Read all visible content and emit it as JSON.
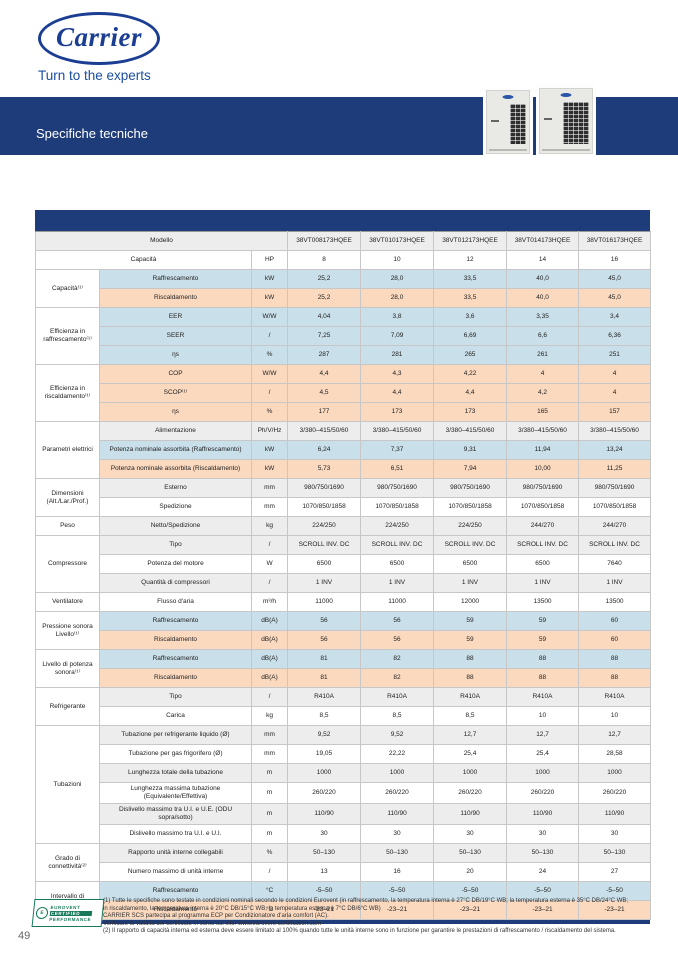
{
  "header": {
    "logo_text": "Carrier",
    "tagline": "Turn to the experts",
    "banner_title": "Specifiche tecniche"
  },
  "colors": {
    "navy": "#1e3c7a",
    "carrier_blue": "#1b3e93",
    "blue_tint": "#c9dfe9",
    "orange_tint": "#fbd9bf",
    "gray_tint": "#ededed",
    "eurovent_green": "#17795a"
  },
  "table": {
    "sections": [
      {
        "rows": [
          {
            "label": "Modello",
            "span": 3,
            "tint": "gray",
            "values": [
              "38VT008173HQEE",
              "38VT010173HQEE",
              "38VT012173HQEE",
              "38VT014173HQEE",
              "38VT016173HQEE"
            ]
          }
        ]
      },
      {
        "rows": [
          {
            "label": "Capacità",
            "span": 2,
            "unit": "HP",
            "tint": "white",
            "values": [
              "8",
              "10",
              "12",
              "14",
              "16"
            ]
          }
        ]
      },
      {
        "group": "Capacità⁽¹⁾",
        "group_tint": "white",
        "rows": [
          {
            "label": "Raffrescamento",
            "unit": "kW",
            "tint": "blue",
            "values": [
              "25,2",
              "28,0",
              "33,5",
              "40,0",
              "45,0"
            ]
          },
          {
            "label": "Riscaldamento",
            "unit": "kW",
            "tint": "orange",
            "values": [
              "25,2",
              "28,0",
              "33,5",
              "40,0",
              "45,0"
            ]
          }
        ]
      },
      {
        "group": "Efficienza in raffrescamento⁽¹⁾",
        "group_tint": "blue",
        "rows": [
          {
            "label": "EER",
            "unit": "W/W",
            "tint": "blue",
            "values": [
              "4,04",
              "3,8",
              "3,6",
              "3,35",
              "3,4"
            ]
          },
          {
            "label": "SEER",
            "unit": "/",
            "tint": "blue",
            "values": [
              "7,25",
              "7,09",
              "6,69",
              "6,6",
              "6,36"
            ]
          },
          {
            "label": "ηs",
            "unit": "%",
            "tint": "blue",
            "values": [
              "287",
              "281",
              "265",
              "261",
              "251"
            ]
          }
        ]
      },
      {
        "group": "Efficienza in riscaldamento⁽¹⁾",
        "group_tint": "orange",
        "rows": [
          {
            "label": "COP",
            "unit": "W/W",
            "tint": "orange",
            "values": [
              "4,4",
              "4,3",
              "4,22",
              "4",
              "4"
            ]
          },
          {
            "label": "SCOP⁽¹⁾",
            "unit": "/",
            "tint": "orange",
            "values": [
              "4,5",
              "4,4",
              "4,4",
              "4,2",
              "4"
            ]
          },
          {
            "label": "ηs",
            "unit": "%",
            "tint": "orange",
            "values": [
              "177",
              "173",
              "173",
              "165",
              "157"
            ]
          }
        ]
      },
      {
        "group": "Parametri elettrici",
        "group_tint": "white",
        "rows": [
          {
            "label": "Alimentazione",
            "unit": "Ph/V/Hz",
            "tint": "gray",
            "values": [
              "3/380–415/50/60",
              "3/380–415/50/60",
              "3/380–415/50/60",
              "3/380–415/50/60",
              "3/380–415/50/60"
            ]
          },
          {
            "label": "Potenza nominale assorbita (Raffrescamento)",
            "unit": "kW",
            "tint": "blue",
            "values": [
              "6,24",
              "7,37",
              "9,31",
              "11,94",
              "13,24"
            ]
          },
          {
            "label": "Potenza nominale assorbita (Riscaldamento)",
            "unit": "kW",
            "tint": "orange",
            "values": [
              "5,73",
              "6,51",
              "7,94",
              "10,00",
              "11,25"
            ]
          }
        ]
      },
      {
        "group": "Dimensioni (Alt./Lar./Prof.)",
        "group_tint": "gray",
        "rows": [
          {
            "label": "Esterno",
            "unit": "mm",
            "tint": "gray",
            "values": [
              "980/750/1690",
              "980/750/1690",
              "980/750/1690",
              "980/750/1690",
              "980/750/1690"
            ]
          },
          {
            "label": "Spedizione",
            "unit": "mm",
            "tint": "white",
            "values": [
              "1070/850/1858",
              "1070/850/1858",
              "1070/850/1858",
              "1070/850/1858",
              "1070/850/1858"
            ]
          }
        ]
      },
      {
        "group": "Peso",
        "group_tint": "white",
        "rows": [
          {
            "label": "Netto/Spedizione",
            "unit": "kg",
            "tint": "gray",
            "values": [
              "224/250",
              "224/250",
              "224/250",
              "244/270",
              "244/270"
            ]
          }
        ]
      },
      {
        "group": "Compressore",
        "group_tint": "gray",
        "rows": [
          {
            "label": "Tipo",
            "unit": "/",
            "tint": "gray",
            "values": [
              "SCROLL INV. DC",
              "SCROLL INV. DC",
              "SCROLL INV. DC",
              "SCROLL INV. DC",
              "SCROLL INV. DC"
            ]
          },
          {
            "label": "Potenza del motore",
            "unit": "W",
            "tint": "white",
            "values": [
              "6500",
              "6500",
              "6500",
              "6500",
              "7640"
            ]
          },
          {
            "label": "Quantità di compressori",
            "unit": "/",
            "tint": "gray",
            "values": [
              "1 INV",
              "1 INV",
              "1 INV",
              "1 INV",
              "1 INV"
            ]
          }
        ]
      },
      {
        "group": "Ventilatore",
        "group_tint": "white",
        "rows": [
          {
            "label": "Flusso d'aria",
            "unit": "m³/h",
            "tint": "white",
            "values": [
              "11000",
              "11000",
              "12000",
              "13500",
              "13500"
            ]
          }
        ]
      },
      {
        "group": "Pressione sonora Livello⁽¹⁾",
        "group_tint": "gray",
        "rows": [
          {
            "label": "Raffrescamento",
            "unit": "dB(A)",
            "tint": "blue",
            "values": [
              "56",
              "56",
              "59",
              "59",
              "60"
            ]
          },
          {
            "label": "Riscaldamento",
            "unit": "dB(A)",
            "tint": "orange",
            "values": [
              "56",
              "56",
              "59",
              "59",
              "60"
            ]
          }
        ]
      },
      {
        "group": "Livello di potenza sonora⁽¹⁾",
        "group_tint": "white",
        "rows": [
          {
            "label": "Raffrescamento",
            "unit": "dB(A)",
            "tint": "blue",
            "values": [
              "81",
              "82",
              "88",
              "88",
              "88"
            ]
          },
          {
            "label": "Riscaldamento",
            "unit": "dB(A)",
            "tint": "orange",
            "values": [
              "81",
              "82",
              "88",
              "88",
              "88"
            ]
          }
        ]
      },
      {
        "group": "Refrigerante",
        "group_tint": "gray",
        "rows": [
          {
            "label": "Tipo",
            "unit": "/",
            "tint": "gray",
            "values": [
              "R410A",
              "R410A",
              "R410A",
              "R410A",
              "R410A"
            ]
          },
          {
            "label": "Carica",
            "unit": "kg",
            "tint": "white",
            "values": [
              "8,5",
              "8,5",
              "8,5",
              "10",
              "10"
            ]
          }
        ]
      },
      {
        "group": "Tubazioni",
        "group_tint": "white",
        "rows": [
          {
            "label": "Tubazione per refrigerante liquido (Ø)",
            "unit": "mm",
            "tint": "gray",
            "values": [
              "9,52",
              "9,52",
              "12,7",
              "12,7",
              "12,7"
            ]
          },
          {
            "label": "Tubazione per gas frigorifero (Ø)",
            "unit": "mm",
            "tint": "white",
            "values": [
              "19,05",
              "22,22",
              "25,4",
              "25,4",
              "28,58"
            ]
          },
          {
            "label": "Lunghezza totale della tubazione",
            "unit": "m",
            "tint": "gray",
            "values": [
              "1000",
              "1000",
              "1000",
              "1000",
              "1000"
            ]
          },
          {
            "label": "Lunghezza massima tubazione (Equivalente/Effettiva)",
            "unit": "m",
            "tint": "white",
            "values": [
              "260/220",
              "260/220",
              "260/220",
              "260/220",
              "260/220"
            ]
          },
          {
            "label": "Dislivello massimo tra U.I. e U.E. (ODU sopra/sotto)",
            "unit": "m",
            "tint": "gray",
            "values": [
              "110/90",
              "110/90",
              "110/90",
              "110/90",
              "110/90"
            ]
          },
          {
            "label": "Dislivello massimo tra U.I. e U.I.",
            "unit": "m",
            "tint": "white",
            "values": [
              "30",
              "30",
              "30",
              "30",
              "30"
            ]
          }
        ]
      },
      {
        "group": "Grado di connettività⁽²⁾",
        "group_tint": "gray",
        "rows": [
          {
            "label": "Rapporto unità interne collegabili",
            "unit": "%",
            "tint": "gray",
            "values": [
              "50–130",
              "50–130",
              "50–130",
              "50–130",
              "50–130"
            ]
          },
          {
            "label": "Numero massimo di unità interne",
            "unit": "/",
            "tint": "white",
            "values": [
              "13",
              "16",
              "20",
              "24",
              "27"
            ]
          }
        ]
      },
      {
        "group": "Intervallo di funzionamento",
        "group_tint": "white",
        "rows": [
          {
            "label": "Raffrescamento",
            "unit": "°C",
            "tint": "blue",
            "values": [
              "-5–50",
              "-5–50",
              "-5–50",
              "-5–50",
              "-5–50"
            ]
          },
          {
            "label": "Riscaldamento",
            "unit": "°C",
            "tint": "orange",
            "values": [
              "-23–21",
              "-23–21",
              "-23–21",
              "-23–21",
              "-23–21"
            ]
          }
        ]
      }
    ]
  },
  "footer": {
    "badge": [
      "EUROVENT",
      "CERTIFIED",
      "PERFORMANCE"
    ],
    "badge_circle": "E",
    "notes": [
      "(1) Tutte le specifiche sono testate in condizioni nominali secondo le condizioni Eurovent (in raffrescamento, la temperatura interna è 27°C DB/19°C WB; la temperatura esterna è 35°C DB/24°C WB;",
      "in riscaldamento, la temperatura interna è 20°C DB/15°C WB, la temperatura esterna è 7°C DB/6°C WB)",
      "CARRIER SCS partecipa al programma ECP per Condizionatore d'aria comfort (AC).",
      "Verificare la validità del certificato in corso sul sito: www.eurovent-certification.com",
      "(2) Il rapporto di capacità interna ed esterna deve essere limitato al 100% quando tutte le unità interne sono in funzione per garantire le prestazioni di raffrescamento / riscaldamento del sistema."
    ],
    "page_number": "49"
  }
}
